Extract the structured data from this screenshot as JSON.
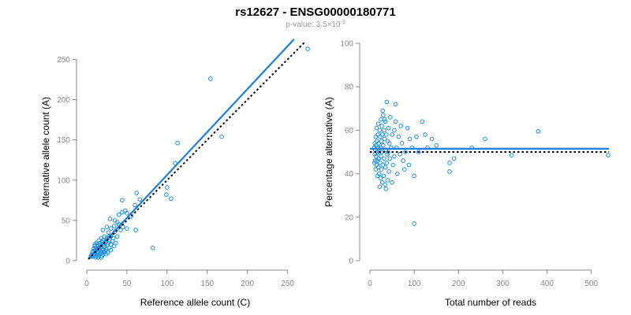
{
  "title": "rs12627 - ENSG00000180771",
  "subtitle_prefix": "p-value: 3.5×10",
  "subtitle_exp": "-3",
  "colors": {
    "points": "#1a8fe0",
    "fit": "#1a7fe0",
    "reference": "#000000",
    "axis": "#888888"
  },
  "chart_data": [
    {
      "type": "scatter",
      "xlabel": "Reference allele count (C)",
      "ylabel": "Alternative allele count (A)",
      "xlim": [
        0,
        270
      ],
      "ylim": [
        0,
        270
      ],
      "xticks": [
        0,
        50,
        100,
        150,
        200,
        250
      ],
      "yticks": [
        0,
        50,
        100,
        150,
        200,
        250
      ],
      "fit_line": {
        "x": [
          2,
          258
        ],
        "y": [
          2,
          275
        ]
      },
      "reference_line": {
        "x": [
          2,
          272
        ],
        "y": [
          2,
          272
        ]
      },
      "points": [
        [
          275,
          263
        ],
        [
          154,
          226
        ],
        [
          113,
          146
        ],
        [
          168,
          154
        ],
        [
          110,
          121
        ],
        [
          100,
          91
        ],
        [
          105,
          77
        ],
        [
          99,
          82
        ],
        [
          62,
          84
        ],
        [
          66,
          76
        ],
        [
          44,
          75
        ],
        [
          60,
          69
        ],
        [
          48,
          62
        ],
        [
          40,
          57
        ],
        [
          44,
          60
        ],
        [
          50,
          59
        ],
        [
          55,
          55
        ],
        [
          29,
          52
        ],
        [
          35,
          50
        ],
        [
          40,
          45
        ],
        [
          38,
          48
        ],
        [
          34,
          43
        ],
        [
          45,
          42
        ],
        [
          50,
          40
        ],
        [
          42,
          38
        ],
        [
          61,
          38
        ],
        [
          25,
          42
        ],
        [
          30,
          40
        ],
        [
          20,
          38
        ],
        [
          27,
          35
        ],
        [
          35,
          36
        ],
        [
          30,
          30
        ],
        [
          33,
          28
        ],
        [
          38,
          30
        ],
        [
          22,
          30
        ],
        [
          25,
          28
        ],
        [
          18,
          28
        ],
        [
          15,
          25
        ],
        [
          20,
          25
        ],
        [
          24,
          24
        ],
        [
          28,
          24
        ],
        [
          32,
          24
        ],
        [
          12,
          22
        ],
        [
          16,
          22
        ],
        [
          20,
          21
        ],
        [
          26,
          20
        ],
        [
          30,
          20
        ],
        [
          34,
          18
        ],
        [
          10,
          18
        ],
        [
          14,
          18
        ],
        [
          18,
          17
        ],
        [
          22,
          17
        ],
        [
          28,
          16
        ],
        [
          9,
          15
        ],
        [
          12,
          15
        ],
        [
          16,
          14
        ],
        [
          20,
          14
        ],
        [
          24,
          14
        ],
        [
          30,
          13
        ],
        [
          8,
          12
        ],
        [
          11,
          12
        ],
        [
          14,
          11
        ],
        [
          18,
          11
        ],
        [
          22,
          11
        ],
        [
          26,
          10
        ],
        [
          7,
          10
        ],
        [
          10,
          9
        ],
        [
          13,
          9
        ],
        [
          16,
          8
        ],
        [
          20,
          8
        ],
        [
          24,
          8
        ],
        [
          6,
          7
        ],
        [
          9,
          7
        ],
        [
          12,
          6
        ],
        [
          15,
          6
        ],
        [
          19,
          6
        ],
        [
          5,
          5
        ],
        [
          8,
          5
        ],
        [
          11,
          4
        ],
        [
          14,
          4
        ],
        [
          18,
          4
        ],
        [
          13,
          20
        ],
        [
          17,
          19
        ],
        [
          21,
          19
        ],
        [
          19,
          23
        ],
        [
          23,
          22
        ],
        [
          27,
          22
        ],
        [
          15,
          16
        ],
        [
          12,
          13
        ],
        [
          19,
          13
        ],
        [
          23,
          12
        ],
        [
          17,
          9
        ],
        [
          21,
          10
        ],
        [
          10,
          20
        ],
        [
          82,
          16
        ],
        [
          36,
          22
        ],
        [
          28,
          30
        ]
      ]
    },
    {
      "type": "scatter",
      "xlabel": "Total number of reads",
      "ylabel": "Percentage alternative (A)",
      "xlim": [
        0,
        545
      ],
      "ylim": [
        0,
        100
      ],
      "xticks": [
        0,
        100,
        200,
        300,
        400,
        500
      ],
      "yticks": [
        0,
        20,
        40,
        60,
        80,
        100
      ],
      "fit_line": {
        "x": [
          0,
          540
        ],
        "y": [
          51.5,
          51.5
        ]
      },
      "reference_line": {
        "x": [
          0,
          540
        ],
        "y": [
          50,
          50
        ]
      },
      "points": [
        [
          538,
          48.5
        ],
        [
          380,
          59.5
        ],
        [
          320,
          48.5
        ],
        [
          260,
          56
        ],
        [
          230,
          52
        ],
        [
          190,
          47
        ],
        [
          180,
          45
        ],
        [
          180,
          41
        ],
        [
          150,
          53
        ],
        [
          140,
          56
        ],
        [
          130,
          52
        ],
        [
          125,
          58
        ],
        [
          118,
          64
        ],
        [
          110,
          50
        ],
        [
          105,
          57
        ],
        [
          100,
          39
        ],
        [
          100,
          17
        ],
        [
          95,
          52
        ],
        [
          90,
          56
        ],
        [
          88,
          44
        ],
        [
          85,
          61
        ],
        [
          80,
          50
        ],
        [
          78,
          42
        ],
        [
          75,
          46
        ],
        [
          72,
          54
        ],
        [
          70,
          62
        ],
        [
          68,
          49
        ],
        [
          65,
          57
        ],
        [
          62,
          40
        ],
        [
          60,
          52
        ],
        [
          58,
          72
        ],
        [
          58,
          64
        ],
        [
          55,
          60
        ],
        [
          55,
          48
        ],
        [
          52,
          44
        ],
        [
          50,
          58
        ],
        [
          50,
          36
        ],
        [
          48,
          52
        ],
        [
          46,
          66
        ],
        [
          45,
          47
        ],
        [
          44,
          54
        ],
        [
          43,
          41
        ],
        [
          42,
          61
        ],
        [
          40,
          37
        ],
        [
          40,
          55
        ],
        [
          39,
          49
        ],
        [
          38,
          45
        ],
        [
          38,
          73
        ],
        [
          37,
          58
        ],
        [
          36,
          51
        ],
        [
          35,
          43
        ],
        [
          35,
          64
        ],
        [
          34,
          35
        ],
        [
          33,
          56
        ],
        [
          32,
          47
        ],
        [
          32,
          60
        ],
        [
          31,
          39
        ],
        [
          30,
          53
        ],
        [
          30,
          67
        ],
        [
          29,
          44
        ],
        [
          28,
          58
        ],
        [
          28,
          36
        ],
        [
          27,
          50
        ],
        [
          27,
          62
        ],
        [
          26,
          42
        ],
        [
          26,
          55
        ],
        [
          25,
          48
        ],
        [
          25,
          65
        ],
        [
          24,
          38
        ],
        [
          24,
          52
        ],
        [
          23,
          57
        ],
        [
          23,
          45
        ],
        [
          22,
          60
        ],
        [
          22,
          34
        ],
        [
          21,
          50
        ],
        [
          21,
          40
        ],
        [
          20,
          54
        ],
        [
          20,
          47
        ],
        [
          19,
          63
        ],
        [
          19,
          43
        ],
        [
          18,
          52
        ],
        [
          18,
          58
        ],
        [
          17,
          46
        ],
        [
          17,
          39
        ],
        [
          16,
          55
        ],
        [
          16,
          50
        ],
        [
          15,
          44
        ],
        [
          15,
          61
        ],
        [
          14,
          48
        ],
        [
          14,
          53
        ],
        [
          13,
          42
        ],
        [
          13,
          57
        ],
        [
          12,
          51
        ],
        [
          12,
          46
        ],
        [
          11,
          54
        ],
        [
          11,
          49
        ],
        [
          10,
          52
        ],
        [
          10,
          45
        ],
        [
          36,
          33
        ],
        [
          29,
          69
        ],
        [
          33,
          65
        ],
        [
          41,
          50
        ]
      ]
    }
  ]
}
